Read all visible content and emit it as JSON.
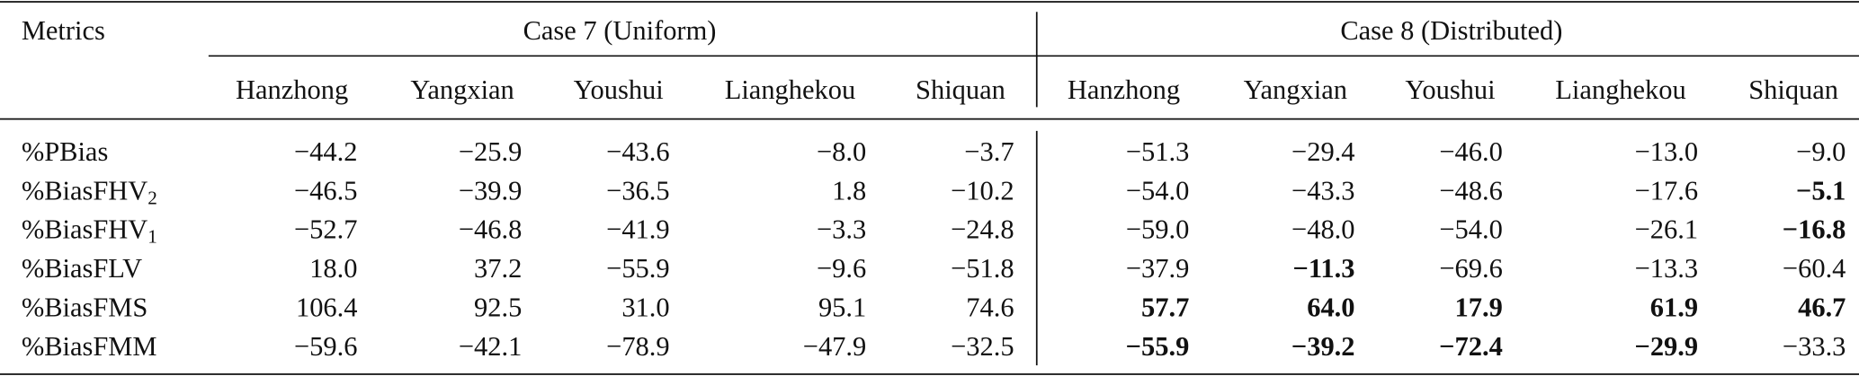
{
  "header": {
    "corner": "Metrics",
    "groups": [
      {
        "label": "Case 7 (Uniform)",
        "columns": [
          "Hanzhong",
          "Yangxian",
          "Youshui",
          "Lianghekou",
          "Shiquan"
        ]
      },
      {
        "label": "Case 8 (Distributed)",
        "columns": [
          "Hanzhong",
          "Yangxian",
          "Youshui",
          "Lianghekou",
          "Shiquan"
        ]
      }
    ]
  },
  "rows": [
    {
      "metric": "%PBias",
      "cells": [
        "−44.2",
        "−25.9",
        "−43.6",
        "−8.0",
        "−3.7",
        "−51.3",
        "−29.4",
        "−46.0",
        "−13.0",
        "−9.0"
      ]
    },
    {
      "metric": {
        "text": "%BiasFHV",
        "sub": "2"
      },
      "cells": [
        "−46.5",
        "−39.9",
        "−36.5",
        "1.8",
        "−10.2",
        "−54.0",
        "−43.3",
        "−48.6",
        "−17.6",
        {
          "text": "−5.1",
          "bold": true
        }
      ]
    },
    {
      "metric": {
        "text": "%BiasFHV",
        "sub": "1"
      },
      "cells": [
        "−52.7",
        "−46.8",
        "−41.9",
        "−3.3",
        "−24.8",
        "−59.0",
        "−48.0",
        "−54.0",
        "−26.1",
        {
          "text": "−16.8",
          "bold": true
        }
      ]
    },
    {
      "metric": "%BiasFLV",
      "cells": [
        "18.0",
        "37.2",
        "−55.9",
        "−9.6",
        "−51.8",
        "−37.9",
        {
          "text": "−11.3",
          "bold": true
        },
        "−69.6",
        "−13.3",
        "−60.4"
      ]
    },
    {
      "metric": "%BiasFMS",
      "cells": [
        "106.4",
        "92.5",
        "31.0",
        "95.1",
        "74.6",
        {
          "text": "57.7",
          "bold": true
        },
        {
          "text": "64.0",
          "bold": true
        },
        {
          "text": "17.9",
          "bold": true
        },
        {
          "text": "61.9",
          "bold": true
        },
        {
          "text": "46.7",
          "bold": true
        }
      ]
    },
    {
      "metric": "%BiasFMM",
      "cells": [
        "−59.6",
        "−42.1",
        "−78.9",
        "−47.9",
        "−32.5",
        {
          "text": "−55.9",
          "bold": true
        },
        {
          "text": "−39.2",
          "bold": true
        },
        {
          "text": "−72.4",
          "bold": true
        },
        {
          "text": "−29.9",
          "bold": true
        },
        "−33.3"
      ]
    }
  ]
}
